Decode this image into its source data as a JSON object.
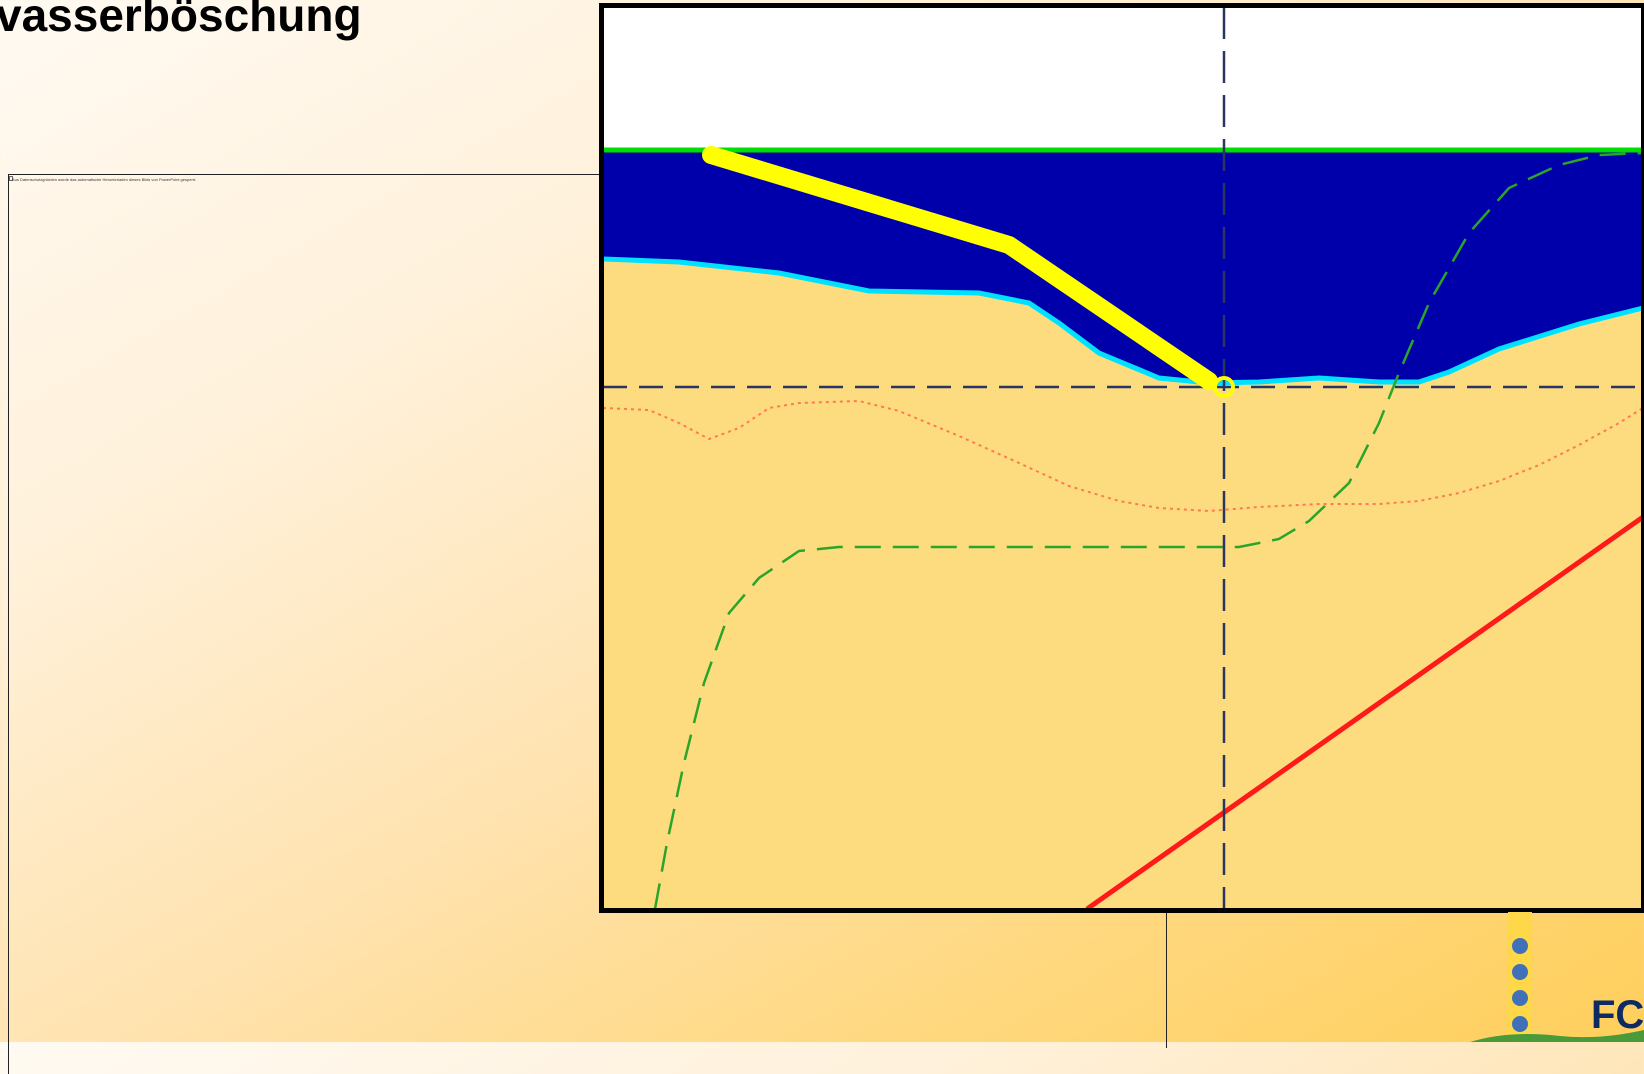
{
  "header": {
    "title": "vasserböschung"
  },
  "placeholder": {
    "notice": "Aus Datenschutzgründen wurde das automatische Herunterladen dieses Bilds von PowerPoint gesperrt."
  },
  "logo": {
    "text": "FC"
  },
  "colors": {
    "water": "#0000aa",
    "water_edge": "#00e0ff",
    "sand": "#fddc7f",
    "sky": "#ffffff",
    "surface_line": "#00dd00",
    "revetment": "#ffff00",
    "guide_line": "#2a3560",
    "dotted_curve": "#ff7a50",
    "dashed_curve": "#2aa52a",
    "straight_line": "#ff1a1a"
  }
}
